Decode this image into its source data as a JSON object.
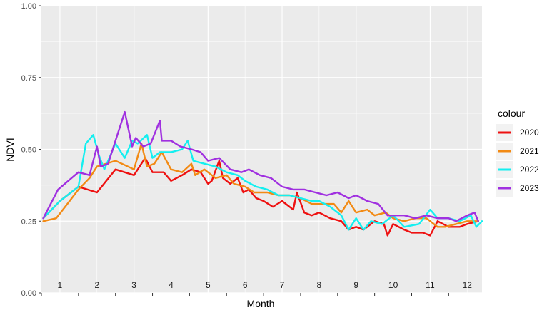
{
  "chart_data": {
    "type": "line",
    "title": "",
    "xlabel": "Month",
    "ylabel": "NDVI",
    "xlim": [
      0.5,
      12.4
    ],
    "ylim": [
      0,
      1
    ],
    "y_ticks": [
      "0.00",
      "0.25",
      "0.50",
      "0.75",
      "1.00"
    ],
    "month_labels": [
      "1",
      "2",
      "3",
      "4",
      "5",
      "6",
      "7",
      "8",
      "9",
      "10",
      "11",
      "12"
    ],
    "grid": true,
    "background": "#ebebeb",
    "legend": {
      "title": "colour",
      "position": "right"
    },
    "series": [
      {
        "name": "2020",
        "color": "#ee1111",
        "points": [
          [
            0.55,
            0.26
          ],
          [
            1.0,
            0.32
          ],
          [
            1.5,
            0.37
          ],
          [
            2.0,
            0.35
          ],
          [
            2.5,
            0.43
          ],
          [
            3.0,
            0.41
          ],
          [
            3.3,
            0.47
          ],
          [
            3.5,
            0.42
          ],
          [
            3.8,
            0.42
          ],
          [
            4.0,
            0.39
          ],
          [
            4.3,
            0.41
          ],
          [
            4.55,
            0.43
          ],
          [
            4.8,
            0.42
          ],
          [
            5.0,
            0.38
          ],
          [
            5.1,
            0.39
          ],
          [
            5.3,
            0.46
          ],
          [
            5.4,
            0.4
          ],
          [
            5.6,
            0.38
          ],
          [
            5.8,
            0.4
          ],
          [
            5.95,
            0.35
          ],
          [
            6.1,
            0.36
          ],
          [
            6.3,
            0.33
          ],
          [
            6.5,
            0.32
          ],
          [
            6.75,
            0.3
          ],
          [
            7.0,
            0.32
          ],
          [
            7.3,
            0.29
          ],
          [
            7.4,
            0.35
          ],
          [
            7.6,
            0.28
          ],
          [
            7.8,
            0.27
          ],
          [
            8.0,
            0.28
          ],
          [
            8.3,
            0.26
          ],
          [
            8.6,
            0.25
          ],
          [
            8.8,
            0.22
          ],
          [
            9.0,
            0.23
          ],
          [
            9.2,
            0.22
          ],
          [
            9.5,
            0.25
          ],
          [
            9.75,
            0.24
          ],
          [
            9.85,
            0.2
          ],
          [
            10.0,
            0.24
          ],
          [
            10.3,
            0.22
          ],
          [
            10.5,
            0.21
          ],
          [
            10.8,
            0.21
          ],
          [
            11.0,
            0.2
          ],
          [
            11.2,
            0.25
          ],
          [
            11.5,
            0.23
          ],
          [
            11.8,
            0.23
          ],
          [
            12.0,
            0.24
          ],
          [
            12.3,
            0.25
          ]
        ]
      },
      {
        "name": "2021",
        "color": "#f28a14",
        "points": [
          [
            0.55,
            0.25
          ],
          [
            0.9,
            0.26
          ],
          [
            1.2,
            0.31
          ],
          [
            1.5,
            0.36
          ],
          [
            1.8,
            0.4
          ],
          [
            2.0,
            0.44
          ],
          [
            2.5,
            0.46
          ],
          [
            3.0,
            0.43
          ],
          [
            3.2,
            0.52
          ],
          [
            3.35,
            0.44
          ],
          [
            3.55,
            0.45
          ],
          [
            3.75,
            0.49
          ],
          [
            4.0,
            0.43
          ],
          [
            4.3,
            0.42
          ],
          [
            4.55,
            0.45
          ],
          [
            4.65,
            0.41
          ],
          [
            4.9,
            0.43
          ],
          [
            5.2,
            0.4
          ],
          [
            5.5,
            0.41
          ],
          [
            5.7,
            0.38
          ],
          [
            6.0,
            0.37
          ],
          [
            6.25,
            0.35
          ],
          [
            6.6,
            0.35
          ],
          [
            6.9,
            0.34
          ],
          [
            7.2,
            0.34
          ],
          [
            7.5,
            0.33
          ],
          [
            7.8,
            0.31
          ],
          [
            8.1,
            0.31
          ],
          [
            8.4,
            0.31
          ],
          [
            8.6,
            0.28
          ],
          [
            8.8,
            0.32
          ],
          [
            9.0,
            0.28
          ],
          [
            9.3,
            0.29
          ],
          [
            9.5,
            0.27
          ],
          [
            9.8,
            0.28
          ],
          [
            10.0,
            0.26
          ],
          [
            10.3,
            0.25
          ],
          [
            10.6,
            0.26
          ],
          [
            10.9,
            0.26
          ],
          [
            11.2,
            0.23
          ],
          [
            11.4,
            0.23
          ],
          [
            11.7,
            0.24
          ],
          [
            12.0,
            0.25
          ],
          [
            12.3,
            0.25
          ]
        ]
      },
      {
        "name": "2022",
        "color": "#14eff0",
        "points": [
          [
            0.55,
            0.26
          ],
          [
            1.0,
            0.32
          ],
          [
            1.5,
            0.37
          ],
          [
            1.7,
            0.52
          ],
          [
            1.9,
            0.55
          ],
          [
            2.05,
            0.48
          ],
          [
            2.2,
            0.43
          ],
          [
            2.5,
            0.52
          ],
          [
            2.75,
            0.47
          ],
          [
            2.95,
            0.53
          ],
          [
            3.1,
            0.52
          ],
          [
            3.35,
            0.55
          ],
          [
            3.5,
            0.47
          ],
          [
            3.7,
            0.49
          ],
          [
            4.0,
            0.49
          ],
          [
            4.3,
            0.5
          ],
          [
            4.45,
            0.53
          ],
          [
            4.6,
            0.46
          ],
          [
            4.9,
            0.45
          ],
          [
            5.2,
            0.44
          ],
          [
            5.5,
            0.42
          ],
          [
            5.8,
            0.41
          ],
          [
            6.0,
            0.39
          ],
          [
            6.3,
            0.37
          ],
          [
            6.6,
            0.36
          ],
          [
            6.9,
            0.34
          ],
          [
            7.2,
            0.34
          ],
          [
            7.5,
            0.33
          ],
          [
            7.8,
            0.32
          ],
          [
            8.0,
            0.32
          ],
          [
            8.3,
            0.3
          ],
          [
            8.6,
            0.27
          ],
          [
            8.8,
            0.22
          ],
          [
            9.0,
            0.26
          ],
          [
            9.2,
            0.22
          ],
          [
            9.4,
            0.25
          ],
          [
            9.7,
            0.24
          ],
          [
            10.0,
            0.27
          ],
          [
            10.3,
            0.23
          ],
          [
            10.7,
            0.24
          ],
          [
            11.0,
            0.29
          ],
          [
            11.2,
            0.26
          ],
          [
            11.5,
            0.26
          ],
          [
            11.8,
            0.25
          ],
          [
            12.1,
            0.27
          ],
          [
            12.25,
            0.23
          ],
          [
            12.4,
            0.25
          ]
        ]
      },
      {
        "name": "2023",
        "color": "#a030e0",
        "points": [
          [
            0.55,
            0.26
          ],
          [
            0.95,
            0.36
          ],
          [
            1.5,
            0.42
          ],
          [
            1.8,
            0.41
          ],
          [
            2.0,
            0.51
          ],
          [
            2.1,
            0.44
          ],
          [
            2.3,
            0.45
          ],
          [
            2.5,
            0.53
          ],
          [
            2.75,
            0.63
          ],
          [
            2.95,
            0.51
          ],
          [
            3.05,
            0.54
          ],
          [
            3.25,
            0.51
          ],
          [
            3.45,
            0.52
          ],
          [
            3.7,
            0.6
          ],
          [
            3.75,
            0.53
          ],
          [
            4.0,
            0.53
          ],
          [
            4.25,
            0.51
          ],
          [
            4.55,
            0.5
          ],
          [
            4.8,
            0.49
          ],
          [
            5.0,
            0.46
          ],
          [
            5.3,
            0.47
          ],
          [
            5.6,
            0.43
          ],
          [
            5.9,
            0.42
          ],
          [
            6.1,
            0.43
          ],
          [
            6.4,
            0.41
          ],
          [
            6.7,
            0.4
          ],
          [
            7.0,
            0.37
          ],
          [
            7.3,
            0.36
          ],
          [
            7.6,
            0.36
          ],
          [
            7.9,
            0.35
          ],
          [
            8.2,
            0.34
          ],
          [
            8.5,
            0.35
          ],
          [
            8.8,
            0.33
          ],
          [
            9.0,
            0.34
          ],
          [
            9.3,
            0.32
          ],
          [
            9.6,
            0.31
          ],
          [
            9.85,
            0.27
          ],
          [
            10.0,
            0.27
          ],
          [
            10.3,
            0.27
          ],
          [
            10.6,
            0.26
          ],
          [
            10.9,
            0.27
          ],
          [
            11.2,
            0.26
          ],
          [
            11.5,
            0.26
          ],
          [
            11.7,
            0.25
          ],
          [
            12.0,
            0.27
          ],
          [
            12.2,
            0.28
          ],
          [
            12.3,
            0.25
          ]
        ]
      }
    ]
  }
}
